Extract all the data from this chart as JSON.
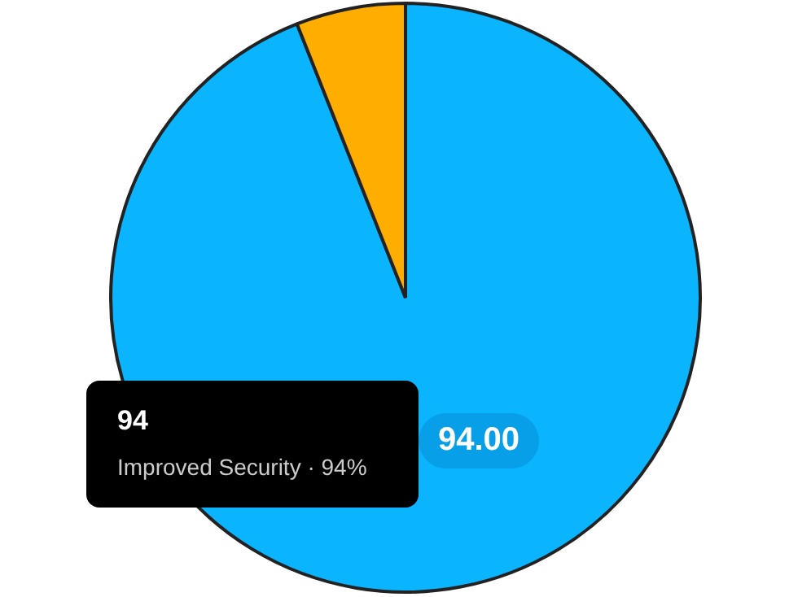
{
  "chart_data": {
    "type": "pie",
    "categories": [
      "Improved Security",
      null
    ],
    "values": [
      94,
      6
    ],
    "colors": [
      "#0ab4ff",
      "#ffae00"
    ],
    "value_labels": [
      "94.00",
      null
    ],
    "legend": false,
    "annotations": [
      "94",
      "· 94%"
    ]
  }
}
